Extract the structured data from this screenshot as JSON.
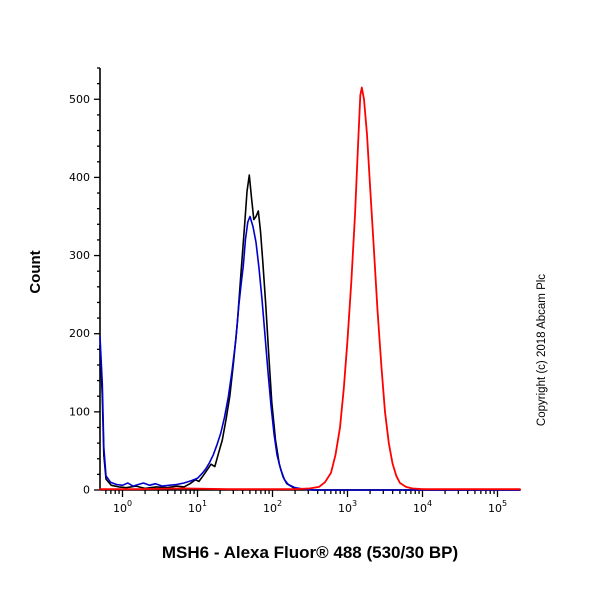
{
  "page": {
    "background": "#ffffff"
  },
  "chart_data": {
    "type": "line",
    "subtype": "flow-cytometry-histogram",
    "title": "MSH6 - Alexa Fluor® 488 (530/30 BP)",
    "ylabel": "Count",
    "copyright": "Copyright (c) 2018 Abcam Plc",
    "grid": false,
    "legend": false,
    "x_scale": "log10",
    "x_domain_log": [
      -0.3,
      5.3
    ],
    "x_decade_exponents": [
      0,
      1,
      2,
      3,
      4,
      5
    ],
    "x_tick_base": "10",
    "y_domain": [
      0,
      540
    ],
    "y_ticks": [
      0,
      100,
      200,
      300,
      400,
      500
    ],
    "y_minor_step": 20,
    "axis_color": "#000000",
    "series": [
      {
        "name": "black-curve",
        "color": "#000000",
        "stroke_width": 1.6,
        "points": [
          [
            -0.3,
            185
          ],
          [
            -0.27,
            120
          ],
          [
            -0.25,
            45
          ],
          [
            -0.22,
            14
          ],
          [
            -0.15,
            6
          ],
          [
            -0.05,
            4
          ],
          [
            0.05,
            3
          ],
          [
            0.18,
            5
          ],
          [
            0.3,
            2
          ],
          [
            0.45,
            4
          ],
          [
            0.6,
            3
          ],
          [
            0.72,
            5
          ],
          [
            0.82,
            4
          ],
          [
            0.9,
            8
          ],
          [
            0.97,
            13
          ],
          [
            1.02,
            11
          ],
          [
            1.08,
            19
          ],
          [
            1.13,
            26
          ],
          [
            1.18,
            33
          ],
          [
            1.23,
            30
          ],
          [
            1.28,
            47
          ],
          [
            1.33,
            64
          ],
          [
            1.38,
            90
          ],
          [
            1.43,
            120
          ],
          [
            1.48,
            163
          ],
          [
            1.53,
            213
          ],
          [
            1.58,
            278
          ],
          [
            1.63,
            342
          ],
          [
            1.66,
            382
          ],
          [
            1.69,
            403
          ],
          [
            1.72,
            374
          ],
          [
            1.75,
            346
          ],
          [
            1.78,
            350
          ],
          [
            1.81,
            357
          ],
          [
            1.84,
            331
          ],
          [
            1.87,
            292
          ],
          [
            1.91,
            236
          ],
          [
            1.95,
            172
          ],
          [
            1.99,
            112
          ],
          [
            2.04,
            64
          ],
          [
            2.09,
            33
          ],
          [
            2.14,
            17
          ],
          [
            2.19,
            8
          ],
          [
            2.28,
            3
          ],
          [
            2.38,
            1
          ],
          [
            2.55,
            0
          ],
          [
            3.0,
            0
          ],
          [
            4.0,
            0
          ],
          [
            5.3,
            0
          ]
        ]
      },
      {
        "name": "blue-curve",
        "color": "#0000cc",
        "stroke_width": 1.6,
        "points": [
          [
            -0.3,
            196
          ],
          [
            -0.27,
            136
          ],
          [
            -0.25,
            55
          ],
          [
            -0.22,
            18
          ],
          [
            -0.16,
            10
          ],
          [
            -0.08,
            7
          ],
          [
            0.0,
            6
          ],
          [
            0.07,
            9
          ],
          [
            0.14,
            5
          ],
          [
            0.21,
            7
          ],
          [
            0.28,
            9
          ],
          [
            0.36,
            6
          ],
          [
            0.44,
            8
          ],
          [
            0.53,
            5
          ],
          [
            0.62,
            6
          ],
          [
            0.72,
            7
          ],
          [
            0.82,
            9
          ],
          [
            0.92,
            12
          ],
          [
            1.0,
            15
          ],
          [
            1.06,
            21
          ],
          [
            1.11,
            27
          ],
          [
            1.16,
            35
          ],
          [
            1.21,
            45
          ],
          [
            1.26,
            58
          ],
          [
            1.31,
            73
          ],
          [
            1.36,
            93
          ],
          [
            1.41,
            119
          ],
          [
            1.46,
            152
          ],
          [
            1.51,
            192
          ],
          [
            1.55,
            236
          ],
          [
            1.58,
            262
          ],
          [
            1.61,
            287
          ],
          [
            1.64,
            321
          ],
          [
            1.67,
            343
          ],
          [
            1.7,
            350
          ],
          [
            1.74,
            337
          ],
          [
            1.78,
            317
          ],
          [
            1.82,
            284
          ],
          [
            1.86,
            244
          ],
          [
            1.9,
            198
          ],
          [
            1.94,
            151
          ],
          [
            1.98,
            108
          ],
          [
            2.02,
            72
          ],
          [
            2.06,
            45
          ],
          [
            2.11,
            26
          ],
          [
            2.16,
            13
          ],
          [
            2.21,
            7
          ],
          [
            2.3,
            3
          ],
          [
            2.42,
            1
          ],
          [
            2.55,
            0
          ],
          [
            3.5,
            0
          ],
          [
            5.3,
            0
          ]
        ]
      },
      {
        "name": "red-curve",
        "color": "#ff0000",
        "stroke_width": 1.8,
        "points": [
          [
            -0.3,
            1
          ],
          [
            0.2,
            1
          ],
          [
            0.8,
            2
          ],
          [
            1.4,
            1
          ],
          [
            1.9,
            1
          ],
          [
            2.3,
            1
          ],
          [
            2.5,
            2
          ],
          [
            2.62,
            4
          ],
          [
            2.7,
            10
          ],
          [
            2.78,
            22
          ],
          [
            2.84,
            45
          ],
          [
            2.9,
            80
          ],
          [
            2.95,
            130
          ],
          [
            3.0,
            192
          ],
          [
            3.05,
            266
          ],
          [
            3.1,
            352
          ],
          [
            3.14,
            440
          ],
          [
            3.17,
            505
          ],
          [
            3.19,
            515
          ],
          [
            3.22,
            500
          ],
          [
            3.26,
            455
          ],
          [
            3.3,
            390
          ],
          [
            3.35,
            310
          ],
          [
            3.4,
            230
          ],
          [
            3.45,
            160
          ],
          [
            3.5,
            100
          ],
          [
            3.55,
            60
          ],
          [
            3.6,
            34
          ],
          [
            3.65,
            18
          ],
          [
            3.7,
            9
          ],
          [
            3.78,
            4
          ],
          [
            3.86,
            2
          ],
          [
            4.0,
            1
          ],
          [
            4.5,
            1
          ],
          [
            5.0,
            1
          ],
          [
            5.3,
            1
          ]
        ]
      }
    ]
  }
}
